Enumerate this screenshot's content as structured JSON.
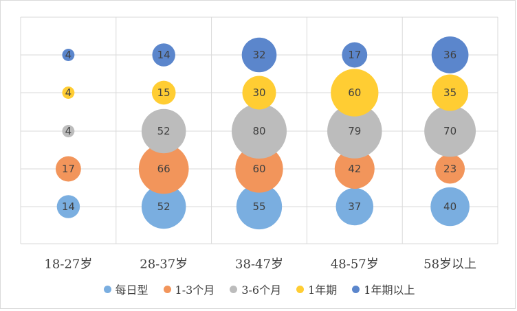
{
  "chart_data": {
    "type": "bubble",
    "title": "",
    "xlabel": "",
    "ylabel": "",
    "categories": [
      "18-27岁",
      "28-37岁",
      "38-47岁",
      "48-57岁",
      "58岁以上"
    ],
    "series": [
      {
        "name": "每日型",
        "color": "#7aaee0",
        "values": [
          14,
          52,
          55,
          37,
          40
        ]
      },
      {
        "name": "1-3个月",
        "color": "#f2955b",
        "values": [
          17,
          66,
          60,
          42,
          23
        ]
      },
      {
        "name": "3-6个月",
        "color": "#bcbcbc",
        "values": [
          4,
          52,
          80,
          79,
          70
        ]
      },
      {
        "name": "1年期",
        "color": "#ffcd33",
        "values": [
          4,
          15,
          30,
          60,
          35
        ]
      },
      {
        "name": "1年期以上",
        "color": "#5b86cc",
        "values": [
          4,
          14,
          32,
          17,
          36
        ]
      }
    ],
    "grid": true,
    "legend_position": "bottom"
  }
}
